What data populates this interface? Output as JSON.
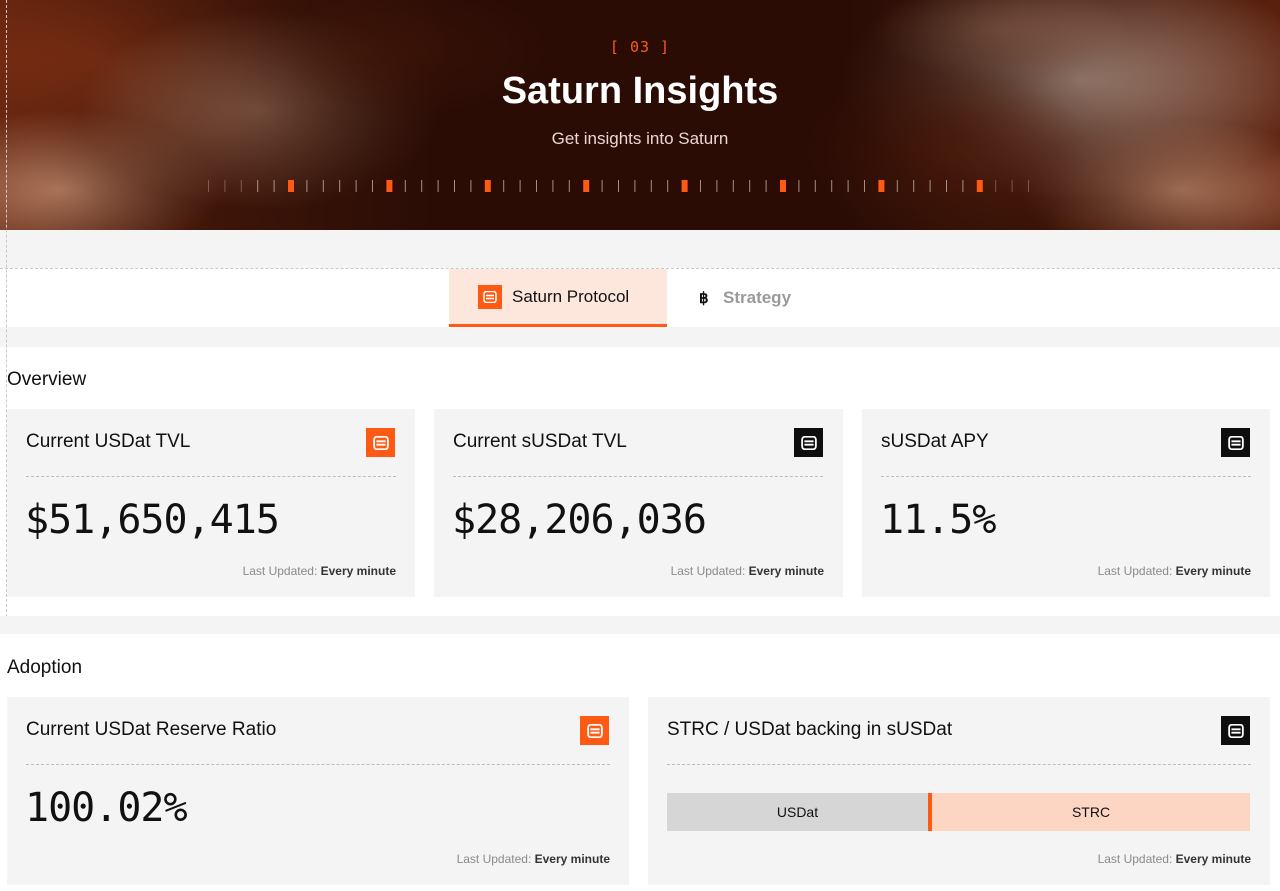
{
  "hero": {
    "section_number": "[ 03 ]",
    "title": "Saturn Insights",
    "subtitle": "Get insights into Saturn"
  },
  "tabs": [
    {
      "label": "Saturn Protocol",
      "icon": "saturn-logo-icon",
      "active": true
    },
    {
      "label": "Strategy",
      "icon": "bitcoin-icon",
      "active": false
    }
  ],
  "colors": {
    "accent": "#ff5a14",
    "card_bg": "#f4f4f4",
    "active_tab_bg": "#fde7dc",
    "strc_bar": "#fdd5c3",
    "usdat_bar": "#d6d6d6"
  },
  "overview": {
    "title": "Overview",
    "cards": [
      {
        "title": "Current USDat TVL",
        "value": "$51,650,415",
        "logo": "orange",
        "updated_label": "Last Updated:",
        "updated_value": "Every minute"
      },
      {
        "title": "Current sUSDat TVL",
        "value": "$28,206,036",
        "logo": "black",
        "updated_label": "Last Updated:",
        "updated_value": "Every minute"
      },
      {
        "title": "sUSDat APY",
        "value": "11.5%",
        "logo": "black",
        "updated_label": "Last Updated:",
        "updated_value": "Every minute"
      }
    ]
  },
  "adoption": {
    "title": "Adoption",
    "reserve": {
      "title": "Current USDat Reserve Ratio",
      "value": "100.02%",
      "updated_label": "Last Updated:",
      "updated_value": "Every minute"
    },
    "backing": {
      "title": "STRC / USDat backing in sUSDat",
      "segments": [
        {
          "label": "USDat",
          "share": 0.45
        },
        {
          "label": "STRC",
          "share": 0.55
        }
      ],
      "updated_label": "Last Updated:",
      "updated_value": "Every minute"
    }
  }
}
